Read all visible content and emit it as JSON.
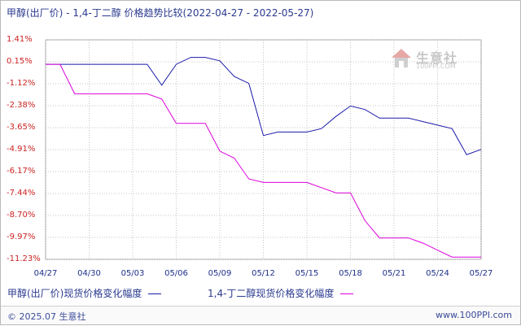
{
  "chart_data": {
    "type": "line",
    "title": "甲醇(出厂价) - 1,4-丁二醇 价格趋势比较(2022-04-27 - 2022-05-27)",
    "xlabel": "",
    "ylabel": "",
    "x_ticks": [
      "04/27",
      "04/30",
      "05/03",
      "05/06",
      "05/09",
      "05/12",
      "05/15",
      "05/18",
      "05/21",
      "05/24",
      "05/27"
    ],
    "y_ticks": [
      "1.41%",
      "0.15%",
      "-1.12%",
      "-2.38%",
      "-3.65%",
      "-4.91%",
      "-6.17%",
      "-7.44%",
      "-8.70%",
      "-9.97%",
      "-11.23%"
    ],
    "ylim": [
      -11.23,
      1.41
    ],
    "grid": true,
    "x": [
      "04/27",
      "04/28",
      "04/29",
      "04/30",
      "05/01",
      "05/02",
      "05/03",
      "05/04",
      "05/05",
      "05/06",
      "05/07",
      "05/08",
      "05/09",
      "05/10",
      "05/11",
      "05/12",
      "05/13",
      "05/14",
      "05/15",
      "05/16",
      "05/17",
      "05/18",
      "05/19",
      "05/20",
      "05/21",
      "05/22",
      "05/23",
      "05/24",
      "05/25",
      "05/26",
      "05/27"
    ],
    "series": [
      {
        "name": "甲醇(出厂价)现货价格变化幅度",
        "color": "#1a1aaa",
        "values": [
          0,
          0,
          0,
          0,
          0,
          0,
          0,
          0,
          -1.2,
          0,
          0.4,
          0.4,
          0.2,
          -0.7,
          -1.1,
          -4.1,
          -3.9,
          -3.9,
          -3.9,
          -3.7,
          -3.0,
          -2.4,
          -2.6,
          -3.1,
          -3.1,
          -3.1,
          -3.3,
          -3.5,
          -3.7,
          -5.2,
          -4.9
        ]
      },
      {
        "name": "1,4-丁二醇现货价格变化幅度",
        "color": "#dd00dd",
        "values": [
          0,
          0,
          -1.7,
          -1.7,
          -1.7,
          -1.7,
          -1.7,
          -1.7,
          -2.0,
          -3.4,
          -3.4,
          -3.4,
          -5.0,
          -5.4,
          -6.6,
          -6.8,
          -6.8,
          -6.8,
          -6.8,
          -7.1,
          -7.4,
          -7.4,
          -9.0,
          -10.0,
          -10.0,
          -10.0,
          -10.3,
          -10.7,
          -11.1,
          -11.1,
          -11.1
        ]
      }
    ]
  },
  "footer": {
    "copyright": "© 2025.07 生意社",
    "site": "www.100PPI.com"
  },
  "watermark": {
    "text": "生意社",
    "sub": "100PPI.COM"
  }
}
